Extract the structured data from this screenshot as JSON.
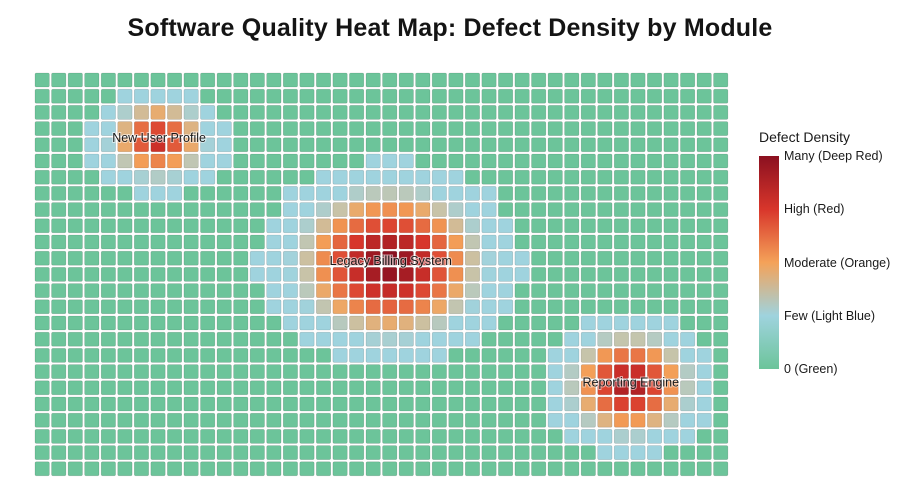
{
  "chart_data": {
    "type": "heatmap",
    "title": "Software Quality Heat Map: Defect Density by Module",
    "xlabel": "",
    "ylabel": "",
    "rows": 25,
    "cols": 42,
    "value_scale": [
      0,
      4
    ],
    "grid": true,
    "legend": {
      "title": "Defect Density",
      "placement": "right",
      "levels": [
        {
          "label": "Many (Deep Red)",
          "value": 4,
          "color": "#8b1020"
        },
        {
          "label": "High (Red)",
          "value": 3,
          "color": "#d8362b"
        },
        {
          "label": "Moderate (Orange)",
          "value": 2,
          "color": "#f4a259"
        },
        {
          "label": "Few (Light Blue)",
          "value": 1,
          "color": "#9fd3de"
        },
        {
          "label": "0 (Green)",
          "value": 0,
          "color": "#6cc49a"
        }
      ]
    },
    "hotspots": [
      {
        "name": "New User Profile",
        "center_col": 7,
        "center_row": 3.7,
        "peak": 3.2,
        "spread_col": 3.4,
        "spread_row": 2.8
      },
      {
        "name": "Legacy Billing System",
        "center_col": 21,
        "center_row": 11.3,
        "peak": 4,
        "spread_col": 6.2,
        "spread_row": 5.0
      },
      {
        "name": "Reporting Engine",
        "center_col": 35.5,
        "center_row": 18.8,
        "peak": 3.6,
        "spread_col": 4.2,
        "spread_row": 3.6
      }
    ]
  }
}
